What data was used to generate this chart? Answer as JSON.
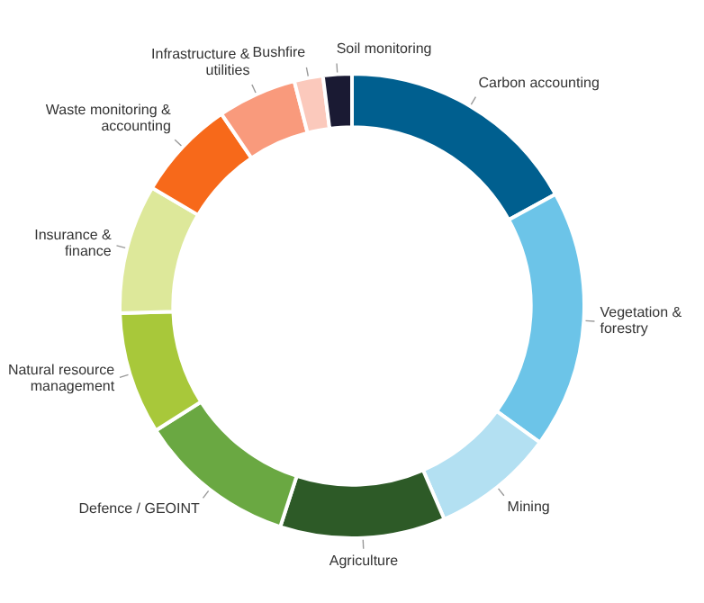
{
  "chart_data": {
    "type": "donut",
    "categories": [
      "Carbon accounting",
      "Vegetation & forestry",
      "Mining",
      "Agriculture",
      "Defence / GEOINT",
      "Natural resource management",
      "Insurance & finance",
      "Waste monitoring & accounting",
      "Infrastructure & utilities",
      "Bushfire",
      "Soil monitoring"
    ],
    "values": [
      17,
      18,
      8.5,
      11.5,
      11,
      8.5,
      9,
      7,
      5.5,
      2,
      2
    ],
    "colors": [
      "#005f8f",
      "#6cc4e8",
      "#b3e0f2",
      "#2d5a27",
      "#6aa842",
      "#a8c83a",
      "#dde89a",
      "#f7691a",
      "#f99a7c",
      "#fbc9bc",
      "#1a1a33"
    ],
    "legend": false
  }
}
